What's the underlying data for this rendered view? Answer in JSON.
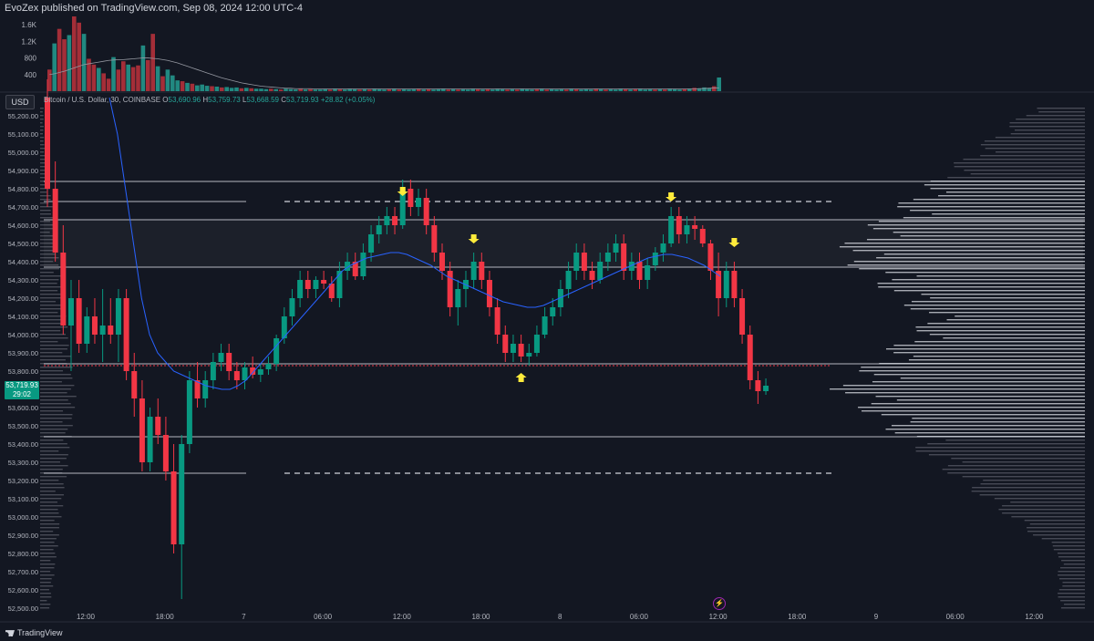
{
  "header": {
    "text": "EvoZex published on TradingView.com, Sep 08, 2024 12:00 UTC-4"
  },
  "currency_button": "USD",
  "legend": {
    "symbol": "Bitcoin / U.S. Dollar, 30, COINBASE",
    "o_label": "O",
    "o": "53,690.96",
    "h_label": "H",
    "h": "53,759.73",
    "l_label": "L",
    "l": "53,668.59",
    "c_label": "C",
    "c": "53,719.93",
    "chg": "+28.82 (+0.05%)"
  },
  "price_label": {
    "price": "53,719.93",
    "countdown": "29:02"
  },
  "footer": {
    "brand": "TradingView"
  },
  "colors": {
    "background": "#131722",
    "up": "#089981",
    "down": "#f23645",
    "ma": "#2962ff",
    "arrow": "#ffeb3b",
    "level": "#d1d4dc",
    "vp_dim": "#787b86"
  },
  "icons": {
    "bolt": "lightning-bolt-icon",
    "logo": "tradingview-logo-icon"
  },
  "chart_data": [
    {
      "type": "bar",
      "name": "volume-pane",
      "y_ticks": [
        "1.6K",
        "1.2K",
        "800",
        "400"
      ],
      "y_tick_values": [
        1600,
        1200,
        800,
        400
      ],
      "ylim": [
        0,
        1800
      ],
      "values": [
        520,
        1150,
        1500,
        1250,
        1350,
        1800,
        1650,
        1380,
        780,
        640,
        560,
        430,
        300,
        820,
        520,
        720,
        640,
        580,
        620,
        1100,
        750,
        1380,
        600,
        360,
        520,
        380,
        260,
        240,
        200,
        180,
        140,
        160,
        130,
        120,
        110,
        90,
        100,
        80,
        90,
        70,
        80,
        70,
        60,
        60,
        50,
        60,
        50,
        40,
        60,
        50,
        40,
        60,
        40,
        50,
        40,
        40,
        50,
        40,
        60,
        50,
        40,
        60,
        50,
        40,
        50,
        40,
        60,
        50,
        40,
        50,
        60,
        40,
        50,
        40,
        50,
        60,
        40,
        50,
        40,
        50,
        60,
        40,
        50,
        40,
        50,
        40,
        60,
        50,
        40,
        50,
        40,
        60,
        50,
        40,
        50,
        40,
        60,
        50,
        40,
        50,
        60,
        40,
        50,
        40,
        50,
        40,
        60,
        50,
        40,
        50,
        40,
        60,
        50,
        40,
        50,
        40,
        60,
        50,
        40,
        50,
        60,
        40,
        50,
        40,
        50,
        40,
        60,
        50,
        40,
        50,
        60,
        80,
        70,
        90,
        80,
        120,
        330
      ],
      "ma_values": [
        400,
        420,
        450,
        480,
        520,
        560,
        600,
        640,
        660,
        680,
        700,
        720,
        740,
        750,
        760,
        760,
        770,
        780,
        790,
        800,
        800,
        790,
        780,
        760,
        740,
        710,
        680,
        640,
        600,
        560,
        520,
        480,
        440,
        400,
        360,
        320,
        290,
        260,
        230,
        200,
        180,
        160,
        140,
        120,
        110,
        100,
        90,
        80,
        70,
        70,
        60,
        60,
        60,
        60,
        55,
        55,
        55,
        55,
        55,
        55,
        55,
        55,
        55,
        55,
        55,
        55,
        55,
        55,
        55,
        55,
        55,
        55,
        55,
        55,
        55,
        55,
        55,
        55,
        55,
        55,
        55,
        55,
        55,
        55,
        55,
        55,
        55,
        55,
        55,
        55,
        55,
        55,
        55,
        55,
        55,
        55,
        55,
        55,
        55,
        55,
        55,
        55,
        55,
        55,
        55,
        55,
        55,
        55,
        55,
        55,
        55,
        55,
        55,
        55,
        55,
        55,
        55,
        55,
        55,
        55,
        55,
        55,
        55,
        55,
        55,
        55,
        55,
        55,
        55,
        55,
        55,
        55,
        60,
        65,
        70,
        75,
        80
      ]
    },
    {
      "type": "candlestick",
      "name": "price-pane",
      "series": [
        {
          "name": "Bitcoin / U.S. Dollar, 30, COINBASE"
        }
      ],
      "y_ticks": [
        "55,200.00",
        "55,100.00",
        "55,000.00",
        "54,900.00",
        "54,800.00",
        "54,700.00",
        "54,600.00",
        "54,500.00",
        "54,400.00",
        "54,300.00",
        "54,200.00",
        "54,100.00",
        "54,000.00",
        "53,900.00",
        "53,800.00",
        "53,700.00",
        "53,600.00",
        "53,500.00",
        "53,400.00",
        "53,300.00",
        "53,200.00",
        "53,100.00",
        "53,000.00",
        "52,900.00",
        "52,800.00",
        "52,700.00",
        "52,600.00",
        "52,500.00"
      ],
      "ylim": [
        52500,
        55200
      ],
      "x_ticks": [
        "12:00",
        "18:00",
        "7",
        "06:00",
        "12:00",
        "18:00",
        "8",
        "06:00",
        "12:00",
        "18:00",
        "9",
        "06:00",
        "12:00"
      ],
      "x_tick_index": [
        5,
        17,
        29,
        41,
        53,
        65,
        77,
        89,
        101,
        113,
        125,
        137,
        149
      ],
      "candles": [
        [
          55300,
          55400,
          54700,
          54800
        ],
        [
          54800,
          54950,
          54400,
          54450
        ],
        [
          54450,
          54600,
          54000,
          54050
        ],
        [
          54050,
          54300,
          53800,
          54200
        ],
        [
          54200,
          54300,
          53900,
          53950
        ],
        [
          53950,
          54150,
          53900,
          54100
        ],
        [
          54100,
          54200,
          53950,
          54000
        ],
        [
          54000,
          54250,
          53850,
          54050
        ],
        [
          54050,
          54200,
          53950,
          54000
        ],
        [
          54000,
          54250,
          53850,
          54200
        ],
        [
          54200,
          54250,
          53750,
          53800
        ],
        [
          53800,
          53900,
          53550,
          53650
        ],
        [
          53650,
          53750,
          53250,
          53300
        ],
        [
          53300,
          53600,
          53250,
          53550
        ],
        [
          53550,
          53650,
          53400,
          53450
        ],
        [
          53450,
          53550,
          53200,
          53250
        ],
        [
          53250,
          53400,
          52800,
          52850
        ],
        [
          52850,
          53450,
          52550,
          53400
        ],
        [
          53400,
          53800,
          53350,
          53750
        ],
        [
          53750,
          53850,
          53600,
          53650
        ],
        [
          53650,
          53800,
          53600,
          53750
        ],
        [
          53750,
          53900,
          53700,
          53850
        ],
        [
          53850,
          53950,
          53800,
          53900
        ],
        [
          53900,
          53950,
          53750,
          53800
        ],
        [
          53800,
          53850,
          53700,
          53750
        ],
        [
          53750,
          53850,
          53700,
          53820
        ],
        [
          53820,
          53880,
          53760,
          53780
        ],
        [
          53780,
          53840,
          53740,
          53810
        ],
        [
          53810,
          53880,
          53780,
          53840
        ],
        [
          53840,
          54000,
          53800,
          53980
        ],
        [
          53980,
          54150,
          53950,
          54100
        ],
        [
          54100,
          54250,
          54050,
          54200
        ],
        [
          54200,
          54350,
          54150,
          54300
        ],
        [
          54300,
          54350,
          54200,
          54250
        ],
        [
          54250,
          54320,
          54200,
          54300
        ],
        [
          54300,
          54350,
          54250,
          54280
        ],
        [
          54280,
          54320,
          54180,
          54200
        ],
        [
          54200,
          54400,
          54150,
          54350
        ],
        [
          54350,
          54450,
          54300,
          54400
        ],
        [
          54400,
          54450,
          54300,
          54320
        ],
        [
          54320,
          54500,
          54300,
          54450
        ],
        [
          54450,
          54600,
          54400,
          54550
        ],
        [
          54550,
          54650,
          54500,
          54600
        ],
        [
          54600,
          54700,
          54550,
          54650
        ],
        [
          54650,
          54700,
          54550,
          54600
        ],
        [
          54600,
          54850,
          54580,
          54800
        ],
        [
          54800,
          54850,
          54650,
          54700
        ],
        [
          54700,
          54800,
          54650,
          54750
        ],
        [
          54750,
          54800,
          54550,
          54600
        ],
        [
          54600,
          54650,
          54400,
          54450
        ],
        [
          54450,
          54500,
          54300,
          54350
        ],
        [
          54350,
          54400,
          54100,
          54150
        ],
        [
          54150,
          54300,
          54050,
          54250
        ],
        [
          54250,
          54350,
          54150,
          54300
        ],
        [
          54300,
          54450,
          54250,
          54400
        ],
        [
          54400,
          54450,
          54250,
          54300
        ],
        [
          54300,
          54350,
          54100,
          54150
        ],
        [
          54150,
          54200,
          53950,
          54000
        ],
        [
          54000,
          54050,
          53850,
          53900
        ],
        [
          53900,
          54000,
          53850,
          53950
        ],
        [
          53950,
          54000,
          53850,
          53880
        ],
        [
          53880,
          53950,
          53830,
          53900
        ],
        [
          53900,
          54050,
          53880,
          54000
        ],
        [
          54000,
          54150,
          53980,
          54100
        ],
        [
          54100,
          54200,
          54050,
          54150
        ],
        [
          54150,
          54300,
          54100,
          54250
        ],
        [
          54250,
          54400,
          54200,
          54350
        ],
        [
          54350,
          54500,
          54300,
          54450
        ],
        [
          54450,
          54500,
          54300,
          54350
        ],
        [
          54350,
          54400,
          54250,
          54300
        ],
        [
          54300,
          54450,
          54280,
          54400
        ],
        [
          54400,
          54500,
          54350,
          54450
        ],
        [
          54450,
          54550,
          54400,
          54500
        ],
        [
          54500,
          54550,
          54300,
          54350
        ],
        [
          54350,
          54450,
          54300,
          54400
        ],
        [
          54400,
          54450,
          54250,
          54300
        ],
        [
          54300,
          54420,
          54250,
          54380
        ],
        [
          54380,
          54480,
          54350,
          54450
        ],
        [
          54450,
          54550,
          54400,
          54500
        ],
        [
          54500,
          54700,
          54480,
          54650
        ],
        [
          54650,
          54700,
          54500,
          54550
        ],
        [
          54550,
          54650,
          54500,
          54600
        ],
        [
          54600,
          54650,
          54520,
          54580
        ],
        [
          54580,
          54600,
          54480,
          54500
        ],
        [
          54500,
          54520,
          54300,
          54350
        ],
        [
          54350,
          54450,
          54100,
          54200
        ],
        [
          54200,
          54400,
          54150,
          54350
        ],
        [
          54350,
          54400,
          54150,
          54200
        ],
        [
          54200,
          54250,
          53950,
          54000
        ],
        [
          54000,
          54050,
          53700,
          53750
        ],
        [
          53750,
          53800,
          53620,
          53690
        ],
        [
          53690,
          53760,
          53670,
          53720
        ]
      ],
      "moving_average": [
        55300,
        55100,
        54800,
        54500,
        54200,
        54000,
        53900,
        53850,
        53800,
        53780,
        53760,
        53740,
        53720,
        53710,
        53700,
        53700,
        53720,
        53750,
        53800,
        53850,
        53900,
        53950,
        54000,
        54050,
        54100,
        54150,
        54200,
        54250,
        54300,
        54350,
        54380,
        54400,
        54420,
        54430,
        54440,
        54450,
        54450,
        54440,
        54420,
        54400,
        54380,
        54350,
        54320,
        54300,
        54280,
        54260,
        54240,
        54220,
        54200,
        54180,
        54170,
        54160,
        54150,
        54150,
        54160,
        54180,
        54200,
        54220,
        54240,
        54260,
        54280,
        54300,
        54320,
        54340,
        54360,
        54380,
        54400,
        54420,
        54430,
        54440,
        54440,
        54430,
        54420,
        54400,
        54380,
        54350,
        54320
      ],
      "horizontal_levels": {
        "solid": [
          54840,
          54730,
          54630,
          54370,
          53840,
          53440,
          53240
        ],
        "dashed": [
          54730,
          53240
        ],
        "red_dotted": [
          53830
        ]
      },
      "arrows": [
        {
          "direction": "down",
          "candle": 45,
          "price": 54760
        },
        {
          "direction": "down",
          "candle": 54,
          "price": 54500
        },
        {
          "direction": "up",
          "candle": 60,
          "price": 53790
        },
        {
          "direction": "down",
          "candle": 79,
          "price": 54730
        },
        {
          "direction": "down",
          "candle": 87,
          "price": 54480
        }
      ]
    }
  ]
}
